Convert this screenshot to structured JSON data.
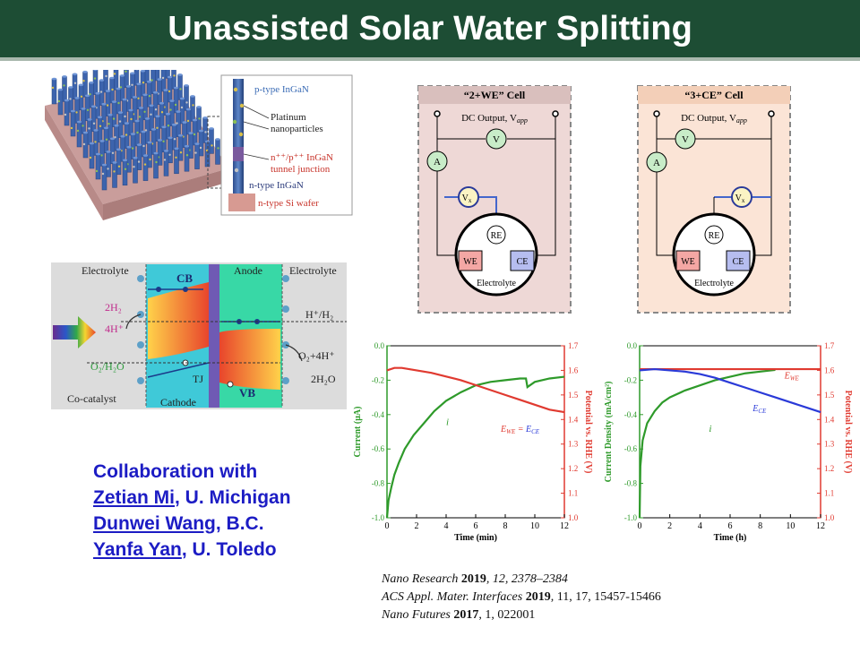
{
  "title": "Unassisted Solar Water Splitting",
  "nanowire": {
    "p_type": "p-type InGaN",
    "platinum": "Platinum",
    "nanoparticles": "nanoparticles",
    "tunnel_top": "n⁺⁺/p⁺⁺ InGaN",
    "tunnel_bottom": "tunnel junction",
    "n_type": "n-type InGaN",
    "wafer": "n-type Si wafer"
  },
  "band": {
    "electrolyte_left": "Electrolyte",
    "electrolyte_right": "Electrolyte",
    "anode": "Anode",
    "cb": "CB",
    "vb": "VB",
    "h2": "2H₂",
    "h_plus": "4H⁺",
    "h_couple": "H⁺/H₂",
    "o2_couple": "O₂/H₂O",
    "o2_right": "O₂+4H⁺",
    "h2o_right": "2H₂O",
    "tj": "TJ",
    "cocatalyst": "Co-catalyst",
    "cathode": "Cathode"
  },
  "cell_a": {
    "title": "“2+WE” Cell",
    "dc": "DC Output, V",
    "dc_sub": "app",
    "a": "A",
    "v": "V",
    "vx": "V",
    "vx_sub": "x",
    "re": "RE",
    "we": "WE",
    "ce": "CE",
    "electrolyte": "Electrolyte",
    "bg": "#eed8d6"
  },
  "cell_b": {
    "title": "“3+CE” Cell",
    "dc": "DC Output, V",
    "dc_sub": "app",
    "a": "A",
    "v": "V",
    "vx": "V",
    "vx_sub": "x",
    "re": "RE",
    "we": "WE",
    "ce": "CE",
    "electrolyte": "Electrolyte",
    "bg": "#fbe4d6"
  },
  "chart_data": [
    {
      "type": "line",
      "xlabel": "Time (min)",
      "ylabel": "Current (μA)",
      "y2label": "Potential vs. RHE (V)",
      "xlim": [
        0,
        12
      ],
      "ylim": [
        -1.0,
        0.0
      ],
      "y2lim": [
        1.0,
        1.7
      ],
      "xticks": [
        "0",
        "2",
        "4",
        "6",
        "8",
        "10",
        "12"
      ],
      "yticks": [
        "0.0",
        "-0.2",
        "-0.4",
        "-0.6",
        "-0.8",
        "-1.0"
      ],
      "y2ticks": [
        "1.7",
        "1.6",
        "1.5",
        "1.4",
        "1.3",
        "1.2",
        "1.1",
        "1.0"
      ],
      "series": [
        {
          "name": "i",
          "axis": "left",
          "color": "#2e9a2a",
          "x": [
            0,
            0.1,
            0.3,
            0.5,
            0.8,
            1.2,
            1.8,
            2.5,
            3.2,
            4,
            5,
            6,
            7,
            8,
            9,
            9.4,
            9.5,
            10,
            11,
            12
          ],
          "y": [
            -1.0,
            -0.9,
            -0.82,
            -0.75,
            -0.68,
            -0.6,
            -0.52,
            -0.45,
            -0.38,
            -0.32,
            -0.27,
            -0.23,
            -0.21,
            -0.2,
            -0.19,
            -0.19,
            -0.24,
            -0.21,
            -0.19,
            -0.18
          ]
        },
        {
          "name": "E_WE = E_CE",
          "axis": "right",
          "color": "#e03a30",
          "x": [
            0,
            0.5,
            1,
            1.5,
            2,
            3,
            4,
            5,
            6,
            7,
            8,
            9,
            10,
            11,
            12
          ],
          "y": [
            1.6,
            1.61,
            1.61,
            1.605,
            1.6,
            1.59,
            1.575,
            1.56,
            1.54,
            1.52,
            1.5,
            1.48,
            1.46,
            1.44,
            1.43
          ]
        }
      ],
      "label_i": "i",
      "label_e": "E",
      "label_e_sub1": "WE",
      "label_e_mid": " = ",
      "label_e2": "E",
      "label_e_sub2": "CE"
    },
    {
      "type": "line",
      "xlabel": "Time (h)",
      "ylabel": "Current Density (mA/cm²)",
      "y2label": "Potential vs. RHE (V)",
      "xlim": [
        0,
        12
      ],
      "ylim": [
        -1.0,
        0.0
      ],
      "y2lim": [
        1.0,
        1.7
      ],
      "xticks": [
        "0",
        "2",
        "4",
        "6",
        "8",
        "10",
        "12"
      ],
      "yticks": [
        "0.0",
        "-0.2",
        "-0.4",
        "-0.6",
        "-0.8",
        "-1.0"
      ],
      "y2ticks": [
        "1.7",
        "1.6",
        "1.5",
        "1.4",
        "1.3",
        "1.2",
        "1.1",
        "1.0"
      ],
      "series": [
        {
          "name": "i",
          "axis": "left",
          "color": "#2e9a2a",
          "x": [
            0,
            0.05,
            0.2,
            0.5,
            1,
            1.5,
            2,
            3,
            4,
            5,
            6,
            7,
            8,
            9
          ],
          "y": [
            -1.0,
            -0.7,
            -0.55,
            -0.45,
            -0.38,
            -0.33,
            -0.3,
            -0.26,
            -0.23,
            -0.2,
            -0.18,
            -0.16,
            -0.15,
            -0.14
          ]
        },
        {
          "name": "E_WE",
          "axis": "right",
          "color": "#e03a30",
          "x": [
            0,
            2,
            4,
            6,
            8,
            10,
            12
          ],
          "y": [
            1.605,
            1.605,
            1.605,
            1.605,
            1.605,
            1.605,
            1.605
          ]
        },
        {
          "name": "E_CE",
          "axis": "right",
          "color": "#2a3ad8",
          "x": [
            0,
            1,
            2,
            3,
            4,
            5,
            6,
            7,
            8,
            9,
            10,
            11,
            12
          ],
          "y": [
            1.6,
            1.605,
            1.6,
            1.595,
            1.585,
            1.57,
            1.55,
            1.53,
            1.51,
            1.49,
            1.47,
            1.45,
            1.43
          ]
        }
      ],
      "label_i": "i",
      "label_we": "E",
      "label_we_sub": "WE",
      "label_ce": "E",
      "label_ce_sub": "CE"
    }
  ],
  "collab": {
    "heading": "Collaboration with",
    "p1_name": "Zetian Mi",
    "p1_aff": ", U. Michigan",
    "p2_name": "Dunwei Wang",
    "p2_aff": ", B.C.",
    "p3_name": "Yanfa Yan",
    "p3_aff": ", U. Toledo"
  },
  "refs": [
    {
      "journal": "Nano Research",
      "year": "2019",
      "rest": ", 12, 2378–2384"
    },
    {
      "journal": "ACS Appl. Mater. Interfaces",
      "year": "2019",
      "rest": ", 11, 17, 15457-15466"
    },
    {
      "journal": "Nano Futures",
      "year": "2017",
      "rest": ", 1, 022001"
    }
  ]
}
